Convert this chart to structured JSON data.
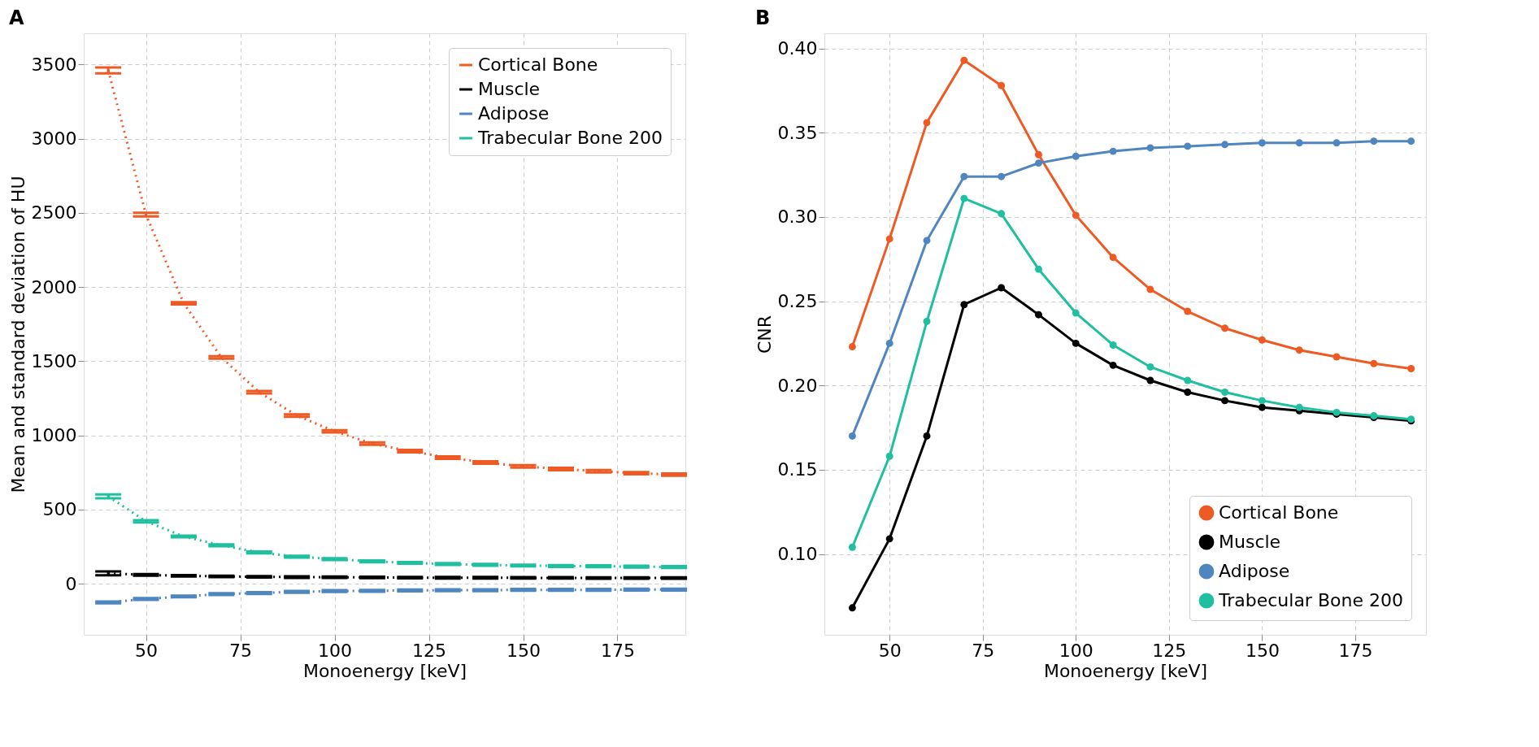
{
  "chart_data": [
    {
      "type": "line",
      "title": "A",
      "xlabel": "Monoenergy [keV]",
      "ylabel": "Mean and standard deviation of HU",
      "x": [
        40,
        50,
        60,
        70,
        80,
        90,
        100,
        110,
        120,
        130,
        140,
        150,
        160,
        170,
        180,
        190
      ],
      "series": [
        {
          "name": "Cortical Bone",
          "color": "#ee5a24",
          "values": [
            3460,
            2488,
            1890,
            1525,
            1291,
            1133,
            1027,
            944,
            893,
            850,
            817,
            791,
            773,
            758,
            745,
            735
          ],
          "errors": [
            20,
            12,
            8,
            8,
            8,
            8,
            8,
            8,
            8,
            8,
            8,
            8,
            8,
            8,
            8,
            8
          ]
        },
        {
          "name": "Muscle",
          "color": "#000000",
          "values": [
            69,
            59,
            53,
            49,
            46,
            44,
            43,
            42,
            41,
            40,
            40,
            39,
            39,
            38,
            38,
            38
          ],
          "errors": [
            13,
            6,
            5,
            5,
            5,
            5,
            5,
            5,
            5,
            5,
            5,
            5,
            5,
            5,
            5,
            5
          ]
        },
        {
          "name": "Adipose",
          "color": "#4f86c0",
          "values": [
            -126,
            -103,
            -86,
            -70,
            -63,
            -55,
            -50,
            -48,
            -46,
            -44,
            -44,
            -42,
            -42,
            -42,
            -40,
            -40
          ],
          "errors": [
            6,
            6,
            6,
            6,
            6,
            6,
            6,
            6,
            6,
            6,
            6,
            6,
            6,
            6,
            6,
            6
          ]
        },
        {
          "name": "Trabecular Bone 200",
          "color": "#1fbf9f",
          "values": [
            588,
            420,
            318,
            258,
            211,
            182,
            165,
            150,
            140,
            132,
            127,
            122,
            119,
            117,
            115,
            112
          ],
          "errors": [
            13,
            8,
            6,
            6,
            6,
            6,
            6,
            6,
            6,
            6,
            6,
            6,
            6,
            6,
            6,
            6
          ]
        }
      ],
      "xlim": [
        33.5,
        193
      ],
      "ylim": [
        -345,
        3710
      ],
      "xticks": [
        50,
        75,
        100,
        125,
        150,
        175
      ],
      "yticks": [
        0,
        500,
        1000,
        1500,
        2000,
        2500,
        3000,
        3500
      ],
      "grid": true,
      "legend": "top right",
      "marker": "none",
      "line_style": "dotted"
    },
    {
      "type": "line",
      "title": "B",
      "xlabel": "Monoenergy [keV]",
      "ylabel": "CNR",
      "x": [
        40,
        50,
        60,
        70,
        80,
        90,
        100,
        110,
        120,
        130,
        140,
        150,
        160,
        170,
        180,
        190
      ],
      "series": [
        {
          "name": "Cortical Bone",
          "color": "#ee5a24",
          "values": [
            0.223,
            0.287,
            0.356,
            0.393,
            0.378,
            0.337,
            0.301,
            0.276,
            0.257,
            0.244,
            0.234,
            0.227,
            0.221,
            0.217,
            0.213,
            0.21
          ]
        },
        {
          "name": "Muscle",
          "color": "#000000",
          "values": [
            0.068,
            0.109,
            0.17,
            0.248,
            0.258,
            0.242,
            0.225,
            0.212,
            0.203,
            0.196,
            0.191,
            0.187,
            0.185,
            0.183,
            0.181,
            0.179
          ]
        },
        {
          "name": "Adipose",
          "color": "#4f86c0",
          "values": [
            0.17,
            0.225,
            0.286,
            0.324,
            0.324,
            0.332,
            0.336,
            0.339,
            0.341,
            0.342,
            0.343,
            0.344,
            0.344,
            0.344,
            0.345,
            0.345
          ]
        },
        {
          "name": "Trabecular Bone 200",
          "color": "#1fbf9f",
          "values": [
            0.104,
            0.158,
            0.238,
            0.311,
            0.302,
            0.269,
            0.243,
            0.224,
            0.211,
            0.203,
            0.196,
            0.191,
            0.187,
            0.184,
            0.182,
            0.18
          ]
        }
      ],
      "xlim": [
        32.5,
        194
      ],
      "ylim": [
        0.052,
        0.409
      ],
      "xticks": [
        50,
        75,
        100,
        125,
        150,
        175
      ],
      "yticks": [
        {
          "value": 0.1,
          "label": "0.10"
        },
        0.15,
        {
          "value": 0.2,
          "label": "0.20"
        },
        0.25,
        {
          "value": 0.3,
          "label": "0.30"
        },
        0.35,
        {
          "value": 0.4,
          "label": "0.40"
        }
      ],
      "grid": true,
      "legend": "bottom right",
      "marker": "circle",
      "line_style": "solid"
    }
  ]
}
